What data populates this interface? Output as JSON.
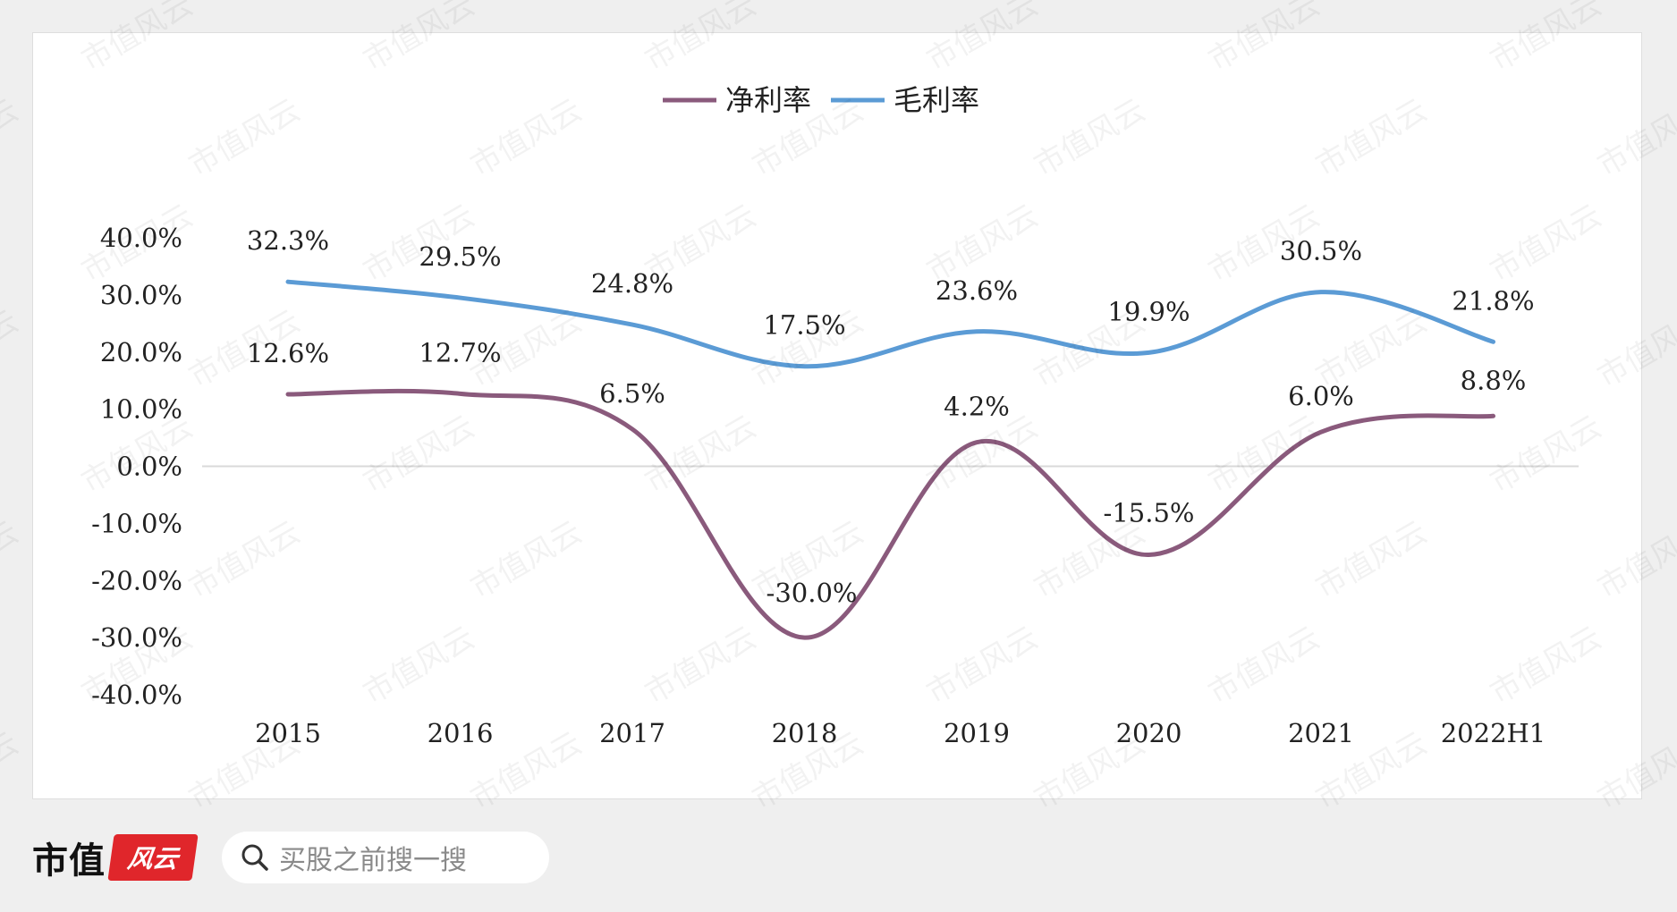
{
  "chart_data": {
    "type": "line",
    "categories": [
      "2015",
      "2016",
      "2017",
      "2018",
      "2019",
      "2020",
      "2021",
      "2022H1"
    ],
    "series": [
      {
        "name": "净利率",
        "color": "#8a5a7c",
        "values": [
          12.6,
          12.7,
          6.5,
          -30.0,
          4.2,
          -15.5,
          6.0,
          8.8
        ],
        "labels": [
          "12.6%",
          "12.7%",
          "6.5%",
          "-30.0%",
          "4.2%",
          "-15.5%",
          "6.0%",
          "8.8%"
        ]
      },
      {
        "name": "毛利率",
        "color": "#5b9bd5",
        "values": [
          32.3,
          29.5,
          24.8,
          17.5,
          23.6,
          19.9,
          30.5,
          21.8
        ],
        "labels": [
          "32.3%",
          "29.5%",
          "24.8%",
          "17.5%",
          "23.6%",
          "19.9%",
          "30.5%",
          "21.8%"
        ]
      }
    ],
    "ylim": [
      -40,
      40
    ],
    "yticks": [
      "40.0%",
      "30.0%",
      "20.0%",
      "10.0%",
      "0.0%",
      "-10.0%",
      "-20.0%",
      "-30.0%",
      "-40.0%"
    ],
    "legend_position": "top-center",
    "grid": false,
    "zero_line": true
  },
  "footer": {
    "brand_name": "市值",
    "brand_logo_text": "风云",
    "search_placeholder": "买股之前搜一搜"
  },
  "watermark": "市值风云"
}
